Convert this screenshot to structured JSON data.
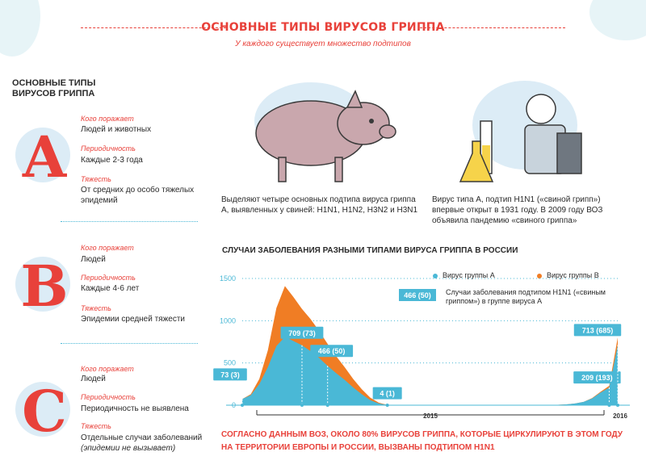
{
  "header": {
    "title": "ОСНОВНЫЕ ТИПЫ ВИРУСОВ ГРИППА",
    "subtitle": "У каждого существует множество подтипов"
  },
  "left": {
    "heading": "ОСНОВНЫЕ ТИПЫ ВИРУСОВ ГРИППА",
    "types": [
      {
        "letter": "A",
        "host_label": "Кого поражает",
        "host": "Людей и животных",
        "period_label": "Периодичность",
        "period": "Каждые 2-3 года",
        "severity_label": "Тяжесть",
        "severity": "От средних до особо тяжелых эпидемий"
      },
      {
        "letter": "B",
        "host_label": "Кого поражает",
        "host": "Людей",
        "period_label": "Периодичность",
        "period": "Каждые 4-6 лет",
        "severity_label": "Тяжесть",
        "severity": "Эпидемии средней тяжести"
      },
      {
        "letter": "C",
        "host_label": "Кого поражает",
        "host": "Людей",
        "period_label": "Периодичность",
        "period": "Периодичность не выявлена",
        "severity_label": "Тяжесть",
        "severity": "Отдельные случаи заболеваний",
        "severity_note": "(эпидемии не вызывает)"
      }
    ]
  },
  "illustrations": {
    "pig_caption": "Выделяют четыре основных подтипа вируса гриппа A, выявленных у свиней: H1N1, H1N2, H3N2 и H3N1",
    "scientist_caption": "Вирус типа A, подтип H1N1 («свиной грипп») впервые открыт в 1931 году. В 2009 году ВОЗ объявила пандемию «свиного гриппа»"
  },
  "chart_data": {
    "type": "area",
    "title": "СЛУЧАИ ЗАБОЛЕВАНИЯ РАЗНЫМИ ТИПАМИ ВИРУСА ГРИППА В РОССИИ",
    "y_ticks": [
      "1500",
      "1000",
      "500",
      "0"
    ],
    "ylim": [
      0,
      1500
    ],
    "x_labels": [
      "2015",
      "2016"
    ],
    "x_index": [
      0,
      1,
      2,
      3,
      4,
      5,
      6,
      7,
      8,
      9,
      10,
      11,
      12,
      13,
      14,
      15,
      16,
      17,
      18,
      19,
      20,
      21,
      22,
      23,
      24,
      25,
      26,
      27,
      28,
      29,
      30,
      31,
      32,
      33,
      34,
      35,
      36,
      37,
      38,
      39,
      40,
      41,
      42,
      43,
      44
    ],
    "series": [
      {
        "name": "Вирус группы A",
        "color": "#4ab8d6",
        "values": [
          73,
          120,
          250,
          450,
          700,
          810,
          760,
          709,
          640,
          560,
          466,
          380,
          300,
          210,
          130,
          60,
          20,
          4,
          2,
          2,
          2,
          2,
          2,
          2,
          2,
          2,
          2,
          2,
          2,
          2,
          2,
          2,
          2,
          2,
          2,
          2,
          3,
          5,
          10,
          20,
          40,
          80,
          150,
          209,
          713
        ]
      },
      {
        "name": "Вирус группы B",
        "color": "#f07d24",
        "values": [
          0,
          10,
          60,
          200,
          450,
          600,
          520,
          430,
          380,
          320,
          260,
          200,
          150,
          100,
          60,
          30,
          10,
          0,
          0,
          0,
          0,
          0,
          0,
          0,
          0,
          0,
          0,
          0,
          0,
          0,
          0,
          0,
          0,
          0,
          0,
          0,
          0,
          0,
          0,
          0,
          0,
          5,
          10,
          20,
          90
        ]
      }
    ],
    "callouts": [
      {
        "label": "73 (3)",
        "index": 0
      },
      {
        "label": "709 (73)",
        "index": 7
      },
      {
        "label": "466 (50)",
        "index": 10
      },
      {
        "label": "4 (1)",
        "index": 17
      },
      {
        "label": "209 (193)",
        "index": 43
      },
      {
        "label": "713 (685)",
        "index": 44
      }
    ],
    "legend_example": {
      "label": "466 (50)",
      "text": "Случаи заболевания подтипом H1N1 («свиным гриппом») в группе вируса A"
    },
    "legend_a": "Вирус группы A",
    "legend_b": "Вирус группы B"
  },
  "note": "СОГЛАСНО ДАННЫМ ВОЗ, ОКОЛО 80% ВИРУСОВ ГРИППА, КОТОРЫЕ ЦИРКУЛИРУЮТ В ЭТОМ ГОДУ НА ТЕРРИТОРИИ ЕВРОПЫ И РОССИИ, ВЫЗВАНЫ ПОДТИПОМ H1N1",
  "colors": {
    "accent": "#e8413a",
    "blue": "#4ab8d6",
    "orange": "#f07d24"
  }
}
